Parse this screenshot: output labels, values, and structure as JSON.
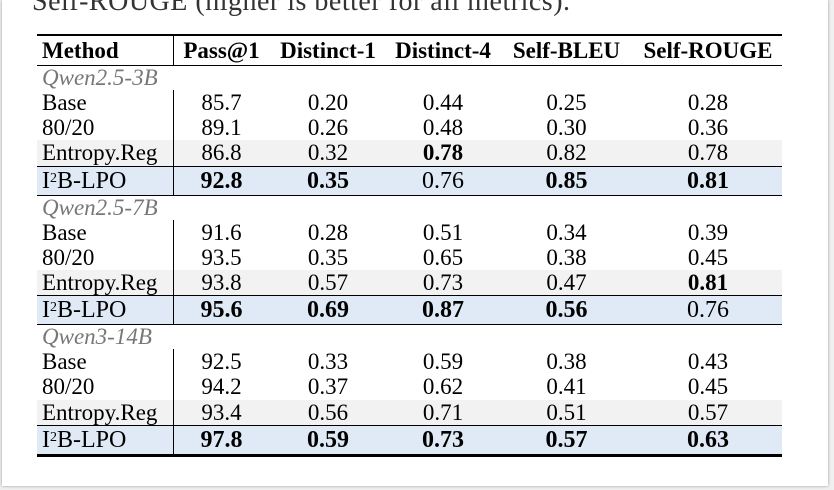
{
  "caption_tail": "Self-ROUGE (higher is better for all metrics).",
  "columns": [
    "Method",
    "Pass@1",
    "Distinct-1",
    "Distinct-4",
    "Self-BLEU",
    "Self-ROUGE"
  ],
  "groups": [
    {
      "name": "Qwen2.5-3B",
      "rows": [
        {
          "method": "Base",
          "pass1": "85.7",
          "distinct1": "0.20",
          "distinct4": "0.44",
          "self_bleu": "0.25",
          "self_rouge": "0.28"
        },
        {
          "method": "80/20",
          "pass1": "89.1",
          "distinct1": "0.26",
          "distinct4": "0.48",
          "self_bleu": "0.30",
          "self_rouge": "0.36"
        },
        {
          "method": "Entropy.Reg",
          "pass1": "86.8",
          "distinct1": "0.32",
          "distinct4": "0.78",
          "self_bleu": "0.82",
          "self_rouge": "0.78"
        },
        {
          "method_base": "I",
          "method_sup": "2",
          "method_rest": "B-LPO",
          "pass1": "92.8",
          "distinct1": "0.35",
          "distinct4": "0.76",
          "self_bleu": "0.85",
          "self_rouge": "0.81"
        }
      ]
    },
    {
      "name": "Qwen2.5-7B",
      "rows": [
        {
          "method": "Base",
          "pass1": "91.6",
          "distinct1": "0.28",
          "distinct4": "0.51",
          "self_bleu": "0.34",
          "self_rouge": "0.39"
        },
        {
          "method": "80/20",
          "pass1": "93.5",
          "distinct1": "0.35",
          "distinct4": "0.65",
          "self_bleu": "0.38",
          "self_rouge": "0.45"
        },
        {
          "method": "Entropy.Reg",
          "pass1": "93.8",
          "distinct1": "0.57",
          "distinct4": "0.73",
          "self_bleu": "0.47",
          "self_rouge": "0.81"
        },
        {
          "method_base": "I",
          "method_sup": "2",
          "method_rest": "B-LPO",
          "pass1": "95.6",
          "distinct1": "0.69",
          "distinct4": "0.87",
          "self_bleu": "0.56",
          "self_rouge": "0.76"
        }
      ]
    },
    {
      "name": "Qwen3-14B",
      "rows": [
        {
          "method": "Base",
          "pass1": "92.5",
          "distinct1": "0.33",
          "distinct4": "0.59",
          "self_bleu": "0.38",
          "self_rouge": "0.43"
        },
        {
          "method": "80/20",
          "pass1": "94.2",
          "distinct1": "0.37",
          "distinct4": "0.62",
          "self_bleu": "0.41",
          "self_rouge": "0.45"
        },
        {
          "method": "Entropy.Reg",
          "pass1": "93.4",
          "distinct1": "0.56",
          "distinct4": "0.71",
          "self_bleu": "0.51",
          "self_rouge": "0.57"
        },
        {
          "method_base": "I",
          "method_sup": "2",
          "method_rest": "B-LPO",
          "pass1": "97.8",
          "distinct1": "0.59",
          "distinct4": "0.73",
          "self_bleu": "0.57",
          "self_rouge": "0.63"
        }
      ]
    }
  ],
  "colors": {
    "highlight_row": "#dfeaf6",
    "alt_row": "#f2f2f2",
    "group_label": "#777777"
  }
}
